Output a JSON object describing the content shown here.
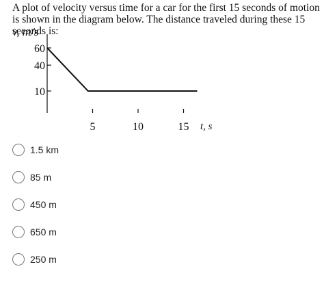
{
  "question": {
    "text": "A plot of velocity versus time for a car for the first 15 seconds of motion is shown in the diagram below. The distance traveled during these 15 seconds is:"
  },
  "chart_data": {
    "type": "line",
    "ylabel": "v, m/s",
    "xlabel": "t, s",
    "x_ticks": [
      5,
      10,
      15
    ],
    "y_ticks": [
      10,
      40,
      60
    ],
    "xlim": [
      0,
      16.5
    ],
    "ylim": [
      0,
      60
    ],
    "series": [
      {
        "x": [
          0,
          4.5,
          16.5
        ],
        "y": [
          60,
          10,
          10
        ]
      }
    ]
  },
  "options": [
    {
      "label": "1.5 km"
    },
    {
      "label": "85 m"
    },
    {
      "label": "450 m"
    },
    {
      "label": "650 m"
    },
    {
      "label": "250 m"
    }
  ]
}
